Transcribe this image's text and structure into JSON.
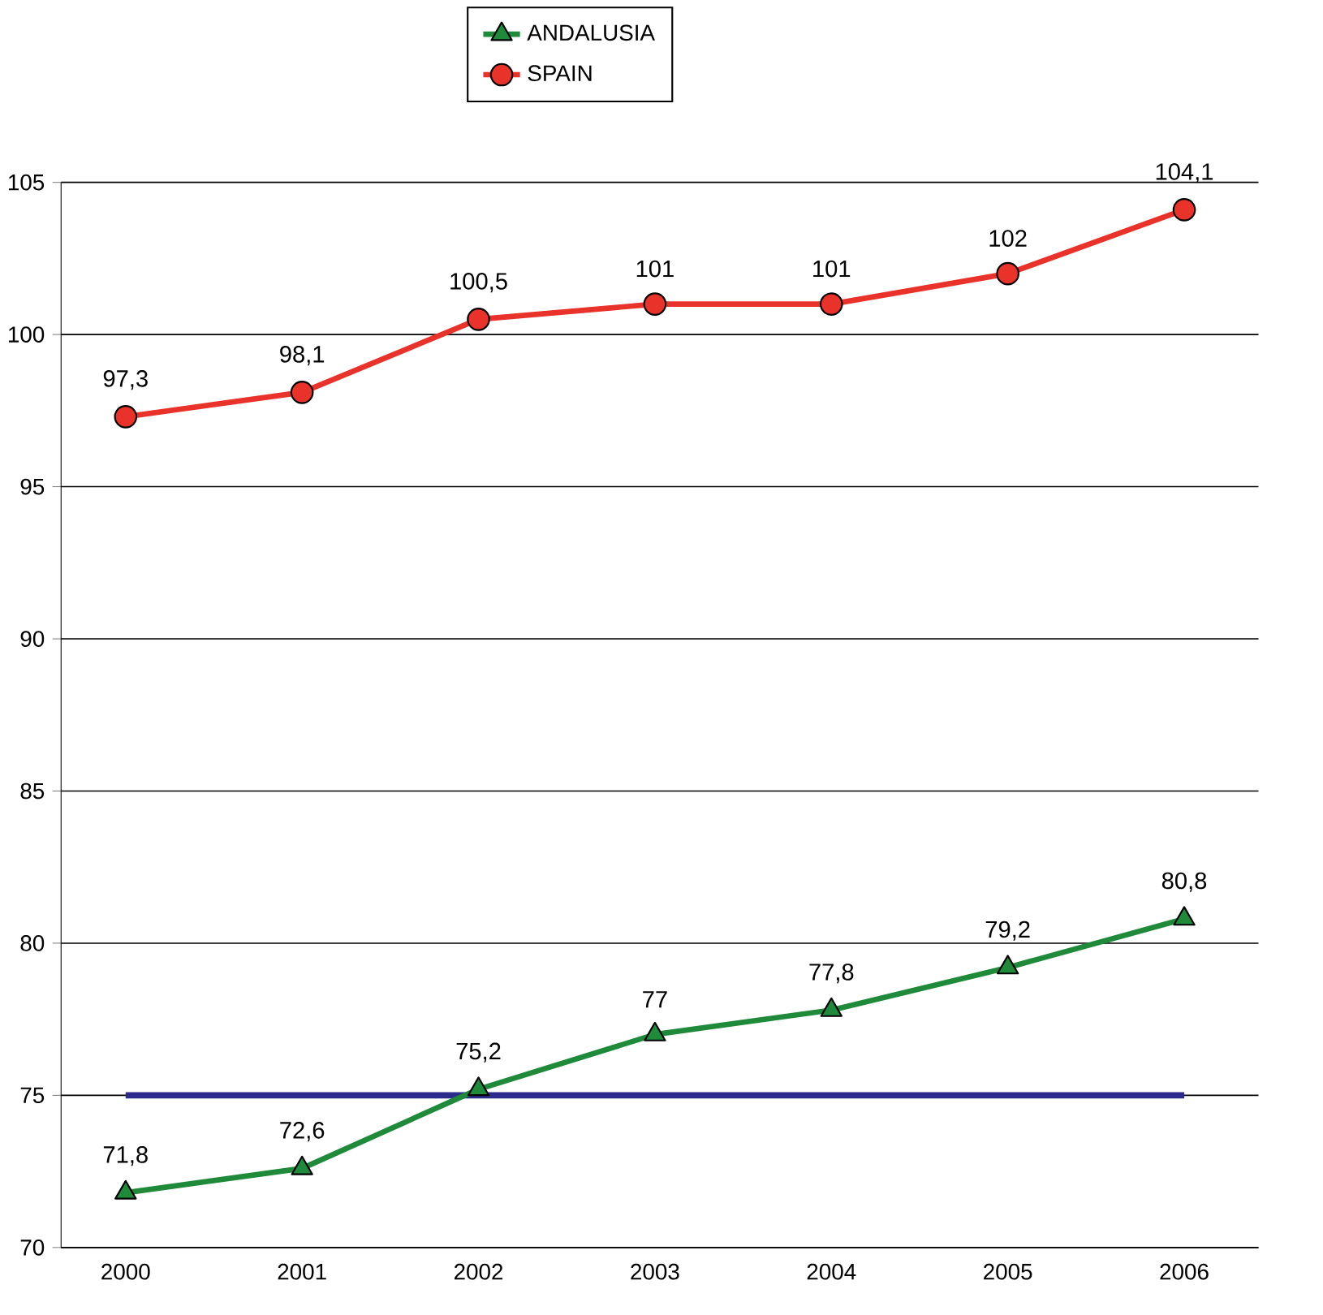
{
  "chart_data": {
    "type": "line",
    "categories": [
      "2000",
      "2001",
      "2002",
      "2003",
      "2004",
      "2005",
      "2006"
    ],
    "series": [
      {
        "name": "ANDALUSIA",
        "color": "#1e8a3a",
        "marker": "triangle",
        "values": [
          71.8,
          72.6,
          75.2,
          77,
          77.8,
          79.2,
          80.8
        ],
        "value_labels": [
          "71,8",
          "72,6",
          "75,2",
          "77",
          "77,8",
          "79,2",
          "80,8"
        ]
      },
      {
        "name": "SPAIN",
        "color": "#e8322a",
        "marker": "circle",
        "values": [
          97.3,
          98.1,
          100.5,
          101,
          101,
          102,
          104.1
        ],
        "value_labels": [
          "97,3",
          "98,1",
          "100,5",
          "101",
          "101",
          "102",
          "104,1"
        ]
      }
    ],
    "ylim": [
      70,
      105
    ],
    "yticks": [
      70,
      75,
      80,
      85,
      90,
      95,
      100,
      105
    ],
    "grid": "y",
    "legend": "top",
    "line_style": "solid",
    "ref_lines": [
      {
        "axis": "y",
        "value": 75,
        "color": "#2b2b8c"
      }
    ]
  }
}
